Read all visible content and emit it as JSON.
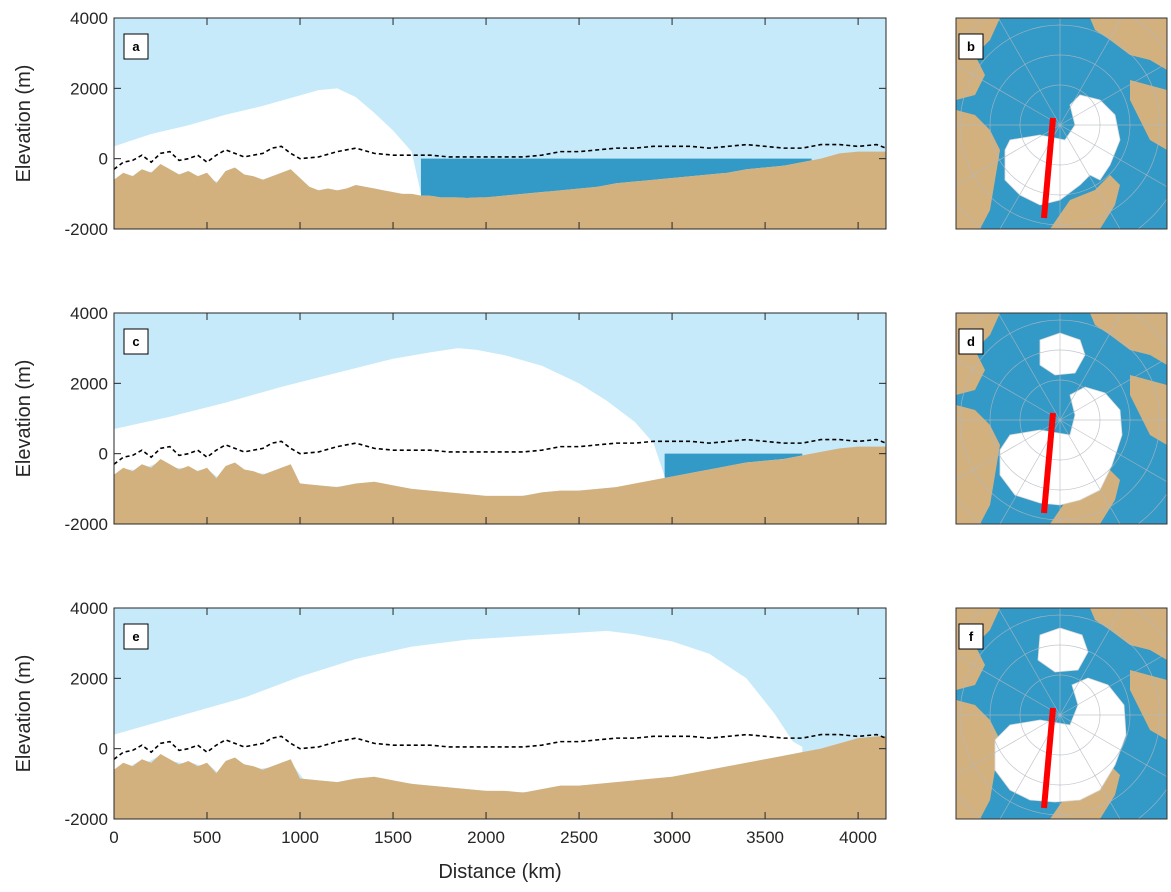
{
  "colors": {
    "sky": "#c6eafa",
    "ice": "#ffffff",
    "water": "#3399c6",
    "land": "#d3b17f",
    "axis": "#262626",
    "transect": "#ff0000",
    "graticule": "#b0b8c0"
  },
  "shared_axes": {
    "ylabel": "Elevation (m)",
    "xlabel": "Distance (km)",
    "yticks": [
      "4000",
      "2000",
      "0",
      "-2000"
    ],
    "xticks": [
      "0",
      "500",
      "1000",
      "1500",
      "2000",
      "2500",
      "3000",
      "3500",
      "4000"
    ]
  },
  "chart_data": [
    {
      "type": "area",
      "panel": "a",
      "xlim": [
        0,
        4150
      ],
      "ylim": [
        -2000,
        4000
      ],
      "grid": false,
      "series": [
        {
          "role": "bed",
          "x": [
            0,
            50,
            100,
            150,
            200,
            250,
            300,
            350,
            400,
            450,
            500,
            550,
            600,
            650,
            700,
            750,
            800,
            850,
            900,
            950,
            1000,
            1050,
            1100,
            1150,
            1200,
            1250,
            1300,
            1350,
            1400,
            1450,
            1500,
            1550,
            1600,
            1650,
            1700,
            1750,
            1800,
            1850,
            1900,
            1950,
            2000,
            2100,
            2200,
            2300,
            2400,
            2500,
            2600,
            2700,
            2800,
            2900,
            3000,
            3100,
            3200,
            3300,
            3400,
            3500,
            3600,
            3700,
            3800,
            3900,
            4000,
            4100,
            4150
          ],
          "y": [
            -600,
            -400,
            -500,
            -300,
            -400,
            -150,
            -300,
            -450,
            -350,
            -500,
            -400,
            -700,
            -350,
            -250,
            -450,
            -500,
            -600,
            -500,
            -400,
            -300,
            -550,
            -800,
            -900,
            -850,
            -900,
            -850,
            -750,
            -800,
            -850,
            -900,
            -950,
            -1000,
            -1000,
            -1050,
            -1050,
            -1100,
            -1100,
            -1100,
            -1120,
            -1100,
            -1100,
            -1050,
            -1000,
            -950,
            -900,
            -850,
            -800,
            -700,
            -650,
            -600,
            -550,
            -500,
            -450,
            -400,
            -300,
            -250,
            -200,
            -100,
            0,
            150,
            200,
            200,
            200
          ]
        },
        {
          "role": "ice_surface",
          "x": [
            0,
            200,
            400,
            600,
            800,
            1000,
            1100,
            1200,
            1300,
            1400,
            1500,
            1600,
            1650
          ],
          "y": [
            350,
            700,
            950,
            1250,
            1500,
            1800,
            1950,
            2000,
            1750,
            1300,
            800,
            200,
            -1000
          ]
        },
        {
          "role": "ocean",
          "surface_y": 0,
          "x_start": 1650,
          "x_end": 3750
        },
        {
          "role": "reference_line",
          "style": "dashed",
          "x": [
            0,
            50,
            100,
            150,
            200,
            250,
            300,
            350,
            400,
            450,
            500,
            550,
            600,
            650,
            700,
            750,
            800,
            850,
            900,
            950,
            1000,
            1100,
            1200,
            1300,
            1400,
            1500,
            1600,
            1700,
            1800,
            1900,
            2000,
            2100,
            2200,
            2300,
            2400,
            2500,
            2600,
            2700,
            2800,
            2900,
            3000,
            3100,
            3200,
            3300,
            3400,
            3500,
            3600,
            3700,
            3800,
            3900,
            4000,
            4100,
            4150
          ],
          "y": [
            -300,
            -100,
            -50,
            100,
            -100,
            150,
            200,
            -50,
            0,
            100,
            -100,
            100,
            250,
            150,
            50,
            100,
            150,
            300,
            350,
            150,
            0,
            50,
            200,
            300,
            150,
            100,
            100,
            100,
            50,
            50,
            50,
            50,
            50,
            100,
            200,
            200,
            250,
            300,
            300,
            350,
            350,
            350,
            300,
            350,
            400,
            350,
            300,
            300,
            400,
            400,
            350,
            400,
            300
          ]
        }
      ]
    },
    {
      "type": "area",
      "panel": "c",
      "xlim": [
        0,
        4150
      ],
      "ylim": [
        -2000,
        4000
      ],
      "grid": false,
      "series": [
        {
          "role": "bed",
          "x": [
            0,
            50,
            100,
            150,
            200,
            250,
            300,
            350,
            400,
            450,
            500,
            550,
            600,
            650,
            700,
            750,
            800,
            850,
            900,
            950,
            1000,
            1100,
            1200,
            1300,
            1400,
            1500,
            1600,
            1700,
            1800,
            1900,
            2000,
            2100,
            2200,
            2300,
            2400,
            2500,
            2600,
            2700,
            2800,
            2900,
            3000,
            3100,
            3200,
            3300,
            3400,
            3500,
            3600,
            3700,
            3800,
            3900,
            4000,
            4100,
            4150
          ],
          "y": [
            -600,
            -400,
            -500,
            -300,
            -400,
            -150,
            -300,
            -450,
            -350,
            -500,
            -400,
            -700,
            -350,
            -250,
            -450,
            -500,
            -600,
            -500,
            -400,
            -300,
            -850,
            -900,
            -950,
            -850,
            -800,
            -900,
            -1000,
            -1050,
            -1100,
            -1150,
            -1200,
            -1200,
            -1200,
            -1100,
            -1050,
            -1050,
            -1000,
            -950,
            -850,
            -750,
            -650,
            -550,
            -450,
            -350,
            -250,
            -200,
            -150,
            -50,
            50,
            150,
            200,
            200,
            200
          ]
        },
        {
          "role": "ice_surface",
          "x": [
            0,
            300,
            600,
            900,
            1200,
            1500,
            1700,
            1850,
            1950,
            2100,
            2300,
            2500,
            2650,
            2800,
            2900,
            2960
          ],
          "y": [
            700,
            1050,
            1450,
            1900,
            2300,
            2700,
            2880,
            3000,
            2950,
            2800,
            2500,
            2000,
            1500,
            900,
            300,
            -650
          ]
        },
        {
          "role": "ocean",
          "surface_y": 0,
          "x_start": 2960,
          "x_end": 3700
        },
        {
          "role": "reference_line",
          "style": "dashed",
          "x": [
            0,
            50,
            100,
            150,
            200,
            250,
            300,
            350,
            400,
            450,
            500,
            550,
            600,
            650,
            700,
            750,
            800,
            850,
            900,
            950,
            1000,
            1100,
            1200,
            1300,
            1400,
            1500,
            1600,
            1700,
            1800,
            1900,
            2000,
            2100,
            2200,
            2300,
            2400,
            2500,
            2600,
            2700,
            2800,
            2900,
            3000,
            3100,
            3200,
            3300,
            3400,
            3500,
            3600,
            3700,
            3800,
            3900,
            4000,
            4100,
            4150
          ],
          "y": [
            -300,
            -100,
            -50,
            100,
            -100,
            150,
            200,
            -50,
            0,
            100,
            -100,
            100,
            250,
            150,
            50,
            100,
            150,
            300,
            350,
            150,
            0,
            50,
            200,
            300,
            150,
            100,
            100,
            100,
            50,
            50,
            50,
            50,
            50,
            100,
            200,
            200,
            250,
            300,
            300,
            350,
            350,
            350,
            300,
            350,
            400,
            350,
            300,
            300,
            400,
            400,
            350,
            400,
            300
          ]
        }
      ]
    },
    {
      "type": "area",
      "panel": "e",
      "xlim": [
        0,
        4150
      ],
      "ylim": [
        -2000,
        4000
      ],
      "grid": false,
      "series": [
        {
          "role": "bed",
          "x": [
            0,
            50,
            100,
            150,
            200,
            250,
            300,
            350,
            400,
            450,
            500,
            550,
            600,
            650,
            700,
            750,
            800,
            850,
            900,
            950,
            1000,
            1100,
            1200,
            1300,
            1400,
            1500,
            1600,
            1700,
            1800,
            1900,
            2000,
            2100,
            2200,
            2300,
            2400,
            2500,
            2600,
            2700,
            2800,
            2900,
            3000,
            3100,
            3200,
            3300,
            3400,
            3500,
            3600,
            3700,
            3800,
            3900,
            4000,
            4100,
            4150
          ],
          "y": [
            -600,
            -400,
            -500,
            -300,
            -400,
            -150,
            -300,
            -450,
            -350,
            -500,
            -400,
            -700,
            -350,
            -250,
            -450,
            -500,
            -600,
            -500,
            -400,
            -300,
            -850,
            -900,
            -950,
            -850,
            -800,
            -900,
            -1000,
            -1050,
            -1100,
            -1150,
            -1200,
            -1200,
            -1250,
            -1150,
            -1050,
            -1050,
            -1000,
            -950,
            -900,
            -850,
            -800,
            -700,
            -600,
            -500,
            -400,
            -300,
            -200,
            -100,
            0,
            150,
            300,
            350,
            350
          ]
        },
        {
          "role": "ice_surface",
          "x": [
            0,
            300,
            700,
            1000,
            1300,
            1600,
            1900,
            2200,
            2500,
            2650,
            2800,
            3000,
            3200,
            3400,
            3550,
            3650,
            3700
          ],
          "y": [
            400,
            850,
            1450,
            2050,
            2550,
            2900,
            3100,
            3200,
            3300,
            3350,
            3250,
            3050,
            2700,
            2000,
            1000,
            200,
            50
          ]
        },
        {
          "role": "reference_line",
          "style": "dashed",
          "x": [
            0,
            50,
            100,
            150,
            200,
            250,
            300,
            350,
            400,
            450,
            500,
            550,
            600,
            650,
            700,
            750,
            800,
            850,
            900,
            950,
            1000,
            1100,
            1200,
            1300,
            1400,
            1500,
            1600,
            1700,
            1800,
            1900,
            2000,
            2100,
            2200,
            2300,
            2400,
            2500,
            2600,
            2700,
            2800,
            2900,
            3000,
            3100,
            3200,
            3300,
            3400,
            3500,
            3600,
            3700,
            3800,
            3900,
            4000,
            4100,
            4150
          ],
          "y": [
            -300,
            -100,
            -50,
            100,
            -100,
            150,
            200,
            -50,
            0,
            100,
            -100,
            100,
            250,
            150,
            50,
            100,
            150,
            300,
            350,
            150,
            0,
            50,
            200,
            300,
            150,
            100,
            100,
            100,
            50,
            50,
            50,
            50,
            50,
            100,
            200,
            200,
            250,
            300,
            300,
            350,
            350,
            350,
            300,
            350,
            400,
            350,
            300,
            300,
            400,
            400,
            350,
            400,
            300
          ]
        }
      ]
    }
  ],
  "maps": [
    {
      "panel": "b",
      "ice_extent": "small"
    },
    {
      "panel": "d",
      "ice_extent": "medium"
    },
    {
      "panel": "f",
      "ice_extent": "large"
    }
  ]
}
